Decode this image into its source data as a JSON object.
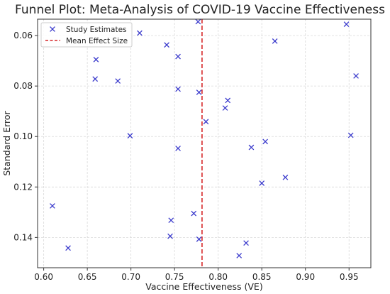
{
  "chart_data": {
    "type": "scatter",
    "title": "Funnel Plot: Meta-Analysis of COVID-19 Vaccine Effectiveness",
    "xlabel": "Vaccine Effectiveness (VE)",
    "ylabel": "Standard Error",
    "xlim": [
      0.593,
      0.975
    ],
    "ylim": [
      0.0535,
      0.152
    ],
    "y_inverted": true,
    "x_ticks": [
      0.6,
      0.65,
      0.7,
      0.75,
      0.8,
      0.85,
      0.9,
      0.95
    ],
    "x_tick_labels": [
      "0.60",
      "0.65",
      "0.70",
      "0.75",
      "0.80",
      "0.85",
      "0.90",
      "0.95"
    ],
    "y_ticks": [
      0.06,
      0.08,
      0.1,
      0.12,
      0.14
    ],
    "y_tick_labels": [
      "0.06",
      "0.08",
      "0.10",
      "0.12",
      "0.14"
    ],
    "grid": true,
    "legend_position": "top-left",
    "series": [
      {
        "name": "Study Estimates",
        "marker": "x",
        "color": "#3b3bcc",
        "points": [
          {
            "x": 0.777,
            "y": 0.0545
          },
          {
            "x": 0.947,
            "y": 0.0555
          },
          {
            "x": 0.71,
            "y": 0.059
          },
          {
            "x": 0.865,
            "y": 0.0622
          },
          {
            "x": 0.741,
            "y": 0.0637
          },
          {
            "x": 0.66,
            "y": 0.0695
          },
          {
            "x": 0.754,
            "y": 0.0683
          },
          {
            "x": 0.659,
            "y": 0.0772
          },
          {
            "x": 0.685,
            "y": 0.078
          },
          {
            "x": 0.958,
            "y": 0.076
          },
          {
            "x": 0.754,
            "y": 0.0812
          },
          {
            "x": 0.778,
            "y": 0.0825
          },
          {
            "x": 0.811,
            "y": 0.0857
          },
          {
            "x": 0.808,
            "y": 0.0887
          },
          {
            "x": 0.786,
            "y": 0.0941
          },
          {
            "x": 0.952,
            "y": 0.0995
          },
          {
            "x": 0.854,
            "y": 0.102
          },
          {
            "x": 0.838,
            "y": 0.1043
          },
          {
            "x": 0.754,
            "y": 0.1047
          },
          {
            "x": 0.699,
            "y": 0.0997
          },
          {
            "x": 0.877,
            "y": 0.1162
          },
          {
            "x": 0.85,
            "y": 0.1185
          },
          {
            "x": 0.61,
            "y": 0.1275
          },
          {
            "x": 0.772,
            "y": 0.1305
          },
          {
            "x": 0.746,
            "y": 0.1332
          },
          {
            "x": 0.745,
            "y": 0.1395
          },
          {
            "x": 0.778,
            "y": 0.1407
          },
          {
            "x": 0.628,
            "y": 0.1442
          },
          {
            "x": 0.832,
            "y": 0.1422
          },
          {
            "x": 0.824,
            "y": 0.1472
          }
        ]
      },
      {
        "name": "Mean Effect Size",
        "type": "vline",
        "x": 0.7815,
        "color": "#d62728",
        "style": "dashed"
      }
    ]
  }
}
